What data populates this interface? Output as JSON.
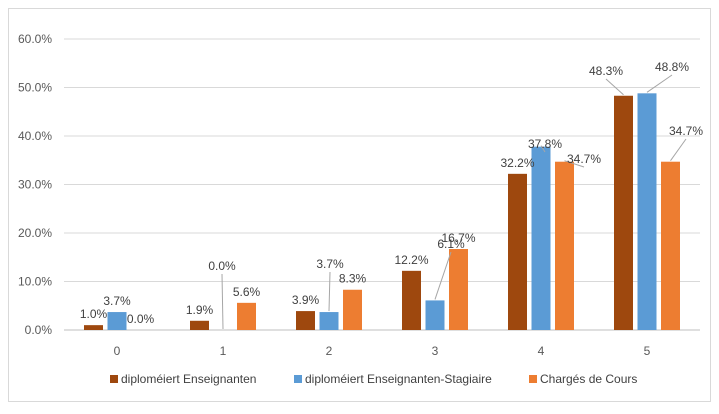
{
  "chart_data": {
    "type": "bar",
    "categories": [
      "0",
      "1",
      "2",
      "3",
      "4",
      "5"
    ],
    "series": [
      {
        "name": "diploméiert Enseignanten",
        "color": "#9e480e",
        "values": [
          1.0,
          1.9,
          3.9,
          12.2,
          32.2,
          48.3
        ],
        "labels": [
          "1.0%",
          "1.9%",
          "3.9%",
          "12.2%",
          "32.2%",
          "48.3%"
        ]
      },
      {
        "name": "diploméiert Enseignanten-Stagiaire",
        "color": "#5b9bd5",
        "values": [
          3.7,
          0.0,
          3.7,
          6.1,
          37.8,
          48.8
        ],
        "labels": [
          "3.7%",
          "0.0%",
          "3.7%",
          "6.1%",
          "37.8%",
          "48.8%"
        ]
      },
      {
        "name": "Chargés de Cours",
        "color": "#ed7d31",
        "values": [
          0.0,
          5.6,
          8.3,
          16.7,
          34.7,
          34.7
        ],
        "labels": [
          "0.0%",
          "5.6%",
          "8.3%",
          "16.7%",
          "34.7%",
          "34.7%"
        ]
      }
    ],
    "ylim": [
      0,
      60
    ],
    "yticks": [
      "0.0%",
      "10.0%",
      "20.0%",
      "30.0%",
      "40.0%",
      "50.0%",
      "60.0%"
    ],
    "grid": true,
    "legend": "bottom",
    "colors": {
      "grid": "#d9d9d9",
      "axis": "#bfbfbf",
      "leader": "#a6a6a6"
    }
  }
}
